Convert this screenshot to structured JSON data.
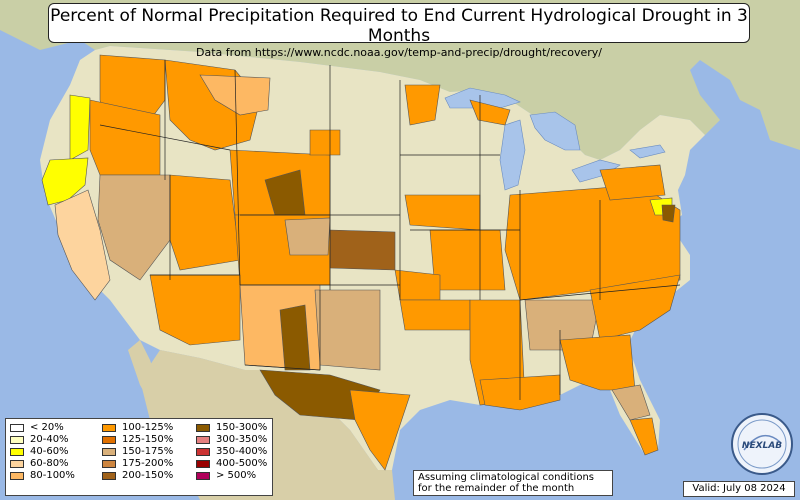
{
  "title": "Percent of Normal Precipitation Required to End Current Hydrological Drought in 3 Months",
  "subtitle": "Data from https://www.ncdc.noaa.gov/temp-and-precip/drought/recovery/",
  "legend": [
    {
      "label": "< 20%",
      "color": "#ffffff"
    },
    {
      "label": "20-40%",
      "color": "#ffffc0"
    },
    {
      "label": "40-60%",
      "color": "#ffff00"
    },
    {
      "label": "60-80%",
      "color": "#fdd49e"
    },
    {
      "label": "80-100%",
      "color": "#fdb863"
    },
    {
      "label": "100-125%",
      "color": "#ff9900"
    },
    {
      "label": "125-150%",
      "color": "#e07000"
    },
    {
      "label": "150-175%",
      "color": "#d9b07a"
    },
    {
      "label": "175-200%",
      "color": "#cd853f"
    },
    {
      "label": "200-150%",
      "color": "#a0621a"
    },
    {
      "label": "150-300%",
      "color": "#8b5a00"
    },
    {
      "label": "300-350%",
      "color": "#e58080"
    },
    {
      "label": "350-400%",
      "color": "#cc3333"
    },
    {
      "label": "400-500%",
      "color": "#990000"
    },
    {
      "label": "> 500%",
      "color": "#b0005a"
    }
  ],
  "note": {
    "line1": "Assuming climatological conditions",
    "line2": "for the remainder of the month"
  },
  "valid": "Valid: July 08 2024",
  "logo_text": "NEXLAB",
  "colors": {
    "ocean": "#9ab9e6",
    "land": "#e8e4c4",
    "canada": "#c9cfa6",
    "mexico": "#d8cfa8",
    "lake": "#a8c4ea",
    "border": "#222222"
  }
}
